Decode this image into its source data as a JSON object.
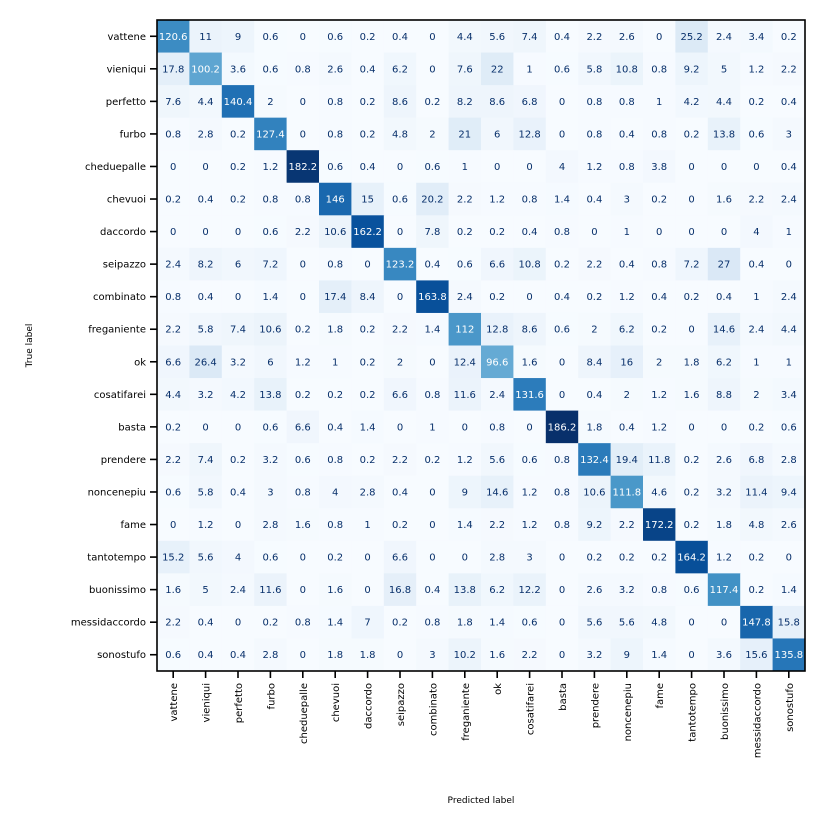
{
  "chart_data": {
    "type": "heatmap",
    "xlabel": "Predicted label",
    "ylabel": "True label",
    "colormap": "Blues",
    "vmin": 0,
    "vmax": 186.2,
    "x_categories": [
      "vattene",
      "vieniqui",
      "perfetto",
      "furbo",
      "cheduepalle",
      "chevuoi",
      "daccordo",
      "seipazzo",
      "combinato",
      "freganiente",
      "ok",
      "cosatifarei",
      "basta",
      "prendere",
      "noncenepiu",
      "fame",
      "tantotempo",
      "buonissimo",
      "messidaccordo",
      "sonostufo"
    ],
    "y_categories": [
      "vattene",
      "vieniqui",
      "perfetto",
      "furbo",
      "cheduepalle",
      "chevuoi",
      "daccordo",
      "seipazzo",
      "combinato",
      "freganiente",
      "ok",
      "cosatifarei",
      "basta",
      "prendere",
      "noncenepiu",
      "fame",
      "tantotempo",
      "buonissimo",
      "messidaccordo",
      "sonostufo"
    ],
    "values": [
      [
        120.6,
        11,
        9,
        0.6,
        0,
        0.6,
        0.2,
        0.4,
        0,
        4.4,
        5.6,
        7.4,
        0.4,
        2.2,
        2.6,
        0,
        25.2,
        2.4,
        3.4,
        0.2
      ],
      [
        17.8,
        100.2,
        3.6,
        0.6,
        0.8,
        2.6,
        0.4,
        6.2,
        0,
        7.6,
        22,
        1,
        0.6,
        5.8,
        10.8,
        0.8,
        9.2,
        5,
        1.2,
        2.2
      ],
      [
        7.6,
        4.4,
        140.4,
        2,
        0,
        0.8,
        0.2,
        8.6,
        0.2,
        8.2,
        8.6,
        6.8,
        0,
        0.8,
        0.8,
        1,
        4.2,
        4.4,
        0.2,
        0.4
      ],
      [
        0.8,
        2.8,
        0.2,
        127.4,
        0,
        0.8,
        0.2,
        4.8,
        2,
        21,
        6,
        12.8,
        0,
        0.8,
        0.4,
        0.8,
        0.2,
        13.8,
        0.6,
        3
      ],
      [
        0,
        0,
        0.2,
        1.2,
        182.2,
        0.6,
        0.4,
        0,
        0.6,
        1,
        0,
        0,
        4,
        1.2,
        0.8,
        3.8,
        0,
        0,
        0,
        0.4
      ],
      [
        0.2,
        0.4,
        0.2,
        0.8,
        0.8,
        146,
        15,
        0.6,
        20.2,
        2.2,
        1.2,
        0.8,
        1.4,
        0.4,
        3,
        0.2,
        0,
        1.6,
        2.2,
        2.4
      ],
      [
        0,
        0,
        0,
        0.6,
        2.2,
        10.6,
        162.2,
        0,
        7.8,
        0.2,
        0.2,
        0.4,
        0.8,
        0,
        1,
        0,
        0,
        0,
        4,
        1
      ],
      [
        2.4,
        8.2,
        6,
        7.2,
        0,
        0.8,
        0,
        123.2,
        0.4,
        0.6,
        6.6,
        10.8,
        0.2,
        2.2,
        0.4,
        0.8,
        7.2,
        27,
        0.4,
        0
      ],
      [
        0.8,
        0.4,
        0,
        1.4,
        0,
        17.4,
        8.4,
        0,
        163.8,
        2.4,
        0.2,
        0,
        0.4,
        0.2,
        1.2,
        0.4,
        0.2,
        0.4,
        1,
        2.4
      ],
      [
        2.2,
        5.8,
        7.4,
        10.6,
        0.2,
        1.8,
        0.2,
        2.2,
        1.4,
        112,
        12.8,
        8.6,
        0.6,
        2,
        6.2,
        0.2,
        0,
        14.6,
        2.4,
        4.4
      ],
      [
        6.6,
        26.4,
        3.2,
        6,
        1.2,
        1,
        0.2,
        2,
        0,
        12.4,
        96.6,
        1.6,
        0,
        8.4,
        16,
        2,
        1.8,
        6.2,
        1,
        1
      ],
      [
        4.4,
        3.2,
        4.2,
        13.8,
        0.2,
        0.2,
        0.2,
        6.6,
        0.8,
        11.6,
        2.4,
        131.6,
        0,
        0.4,
        2,
        1.2,
        1.6,
        8.8,
        2,
        3.4
      ],
      [
        0.2,
        0,
        0,
        0.6,
        6.6,
        0.4,
        1.4,
        0,
        1,
        0,
        0.8,
        0,
        186.2,
        1.8,
        0.4,
        1.2,
        0,
        0,
        0.2,
        0.6
      ],
      [
        2.2,
        7.4,
        0.2,
        3.2,
        0.6,
        0.8,
        0.2,
        2.2,
        0.2,
        1.2,
        5.6,
        0.6,
        0.8,
        132.4,
        19.4,
        11.8,
        0.2,
        2.6,
        6.8,
        2.8
      ],
      [
        0.6,
        5.8,
        0.4,
        3,
        0.8,
        4,
        2.8,
        0.4,
        0,
        9,
        14.6,
        1.2,
        0.8,
        10.6,
        111.8,
        4.6,
        0.2,
        3.2,
        11.4,
        9.4
      ],
      [
        0,
        1.2,
        0,
        2.8,
        1.6,
        0.8,
        1,
        0.2,
        0,
        1.4,
        2.2,
        1.2,
        0.8,
        9.2,
        2.2,
        172.2,
        0.2,
        1.8,
        4.8,
        2.6
      ],
      [
        15.2,
        5.6,
        4,
        0.6,
        0,
        0.2,
        0,
        6.6,
        0,
        0,
        2.8,
        3,
        0,
        0.2,
        0.2,
        0.2,
        164.2,
        1.2,
        0.2,
        0
      ],
      [
        1.6,
        5,
        2.4,
        11.6,
        0,
        1.6,
        0,
        16.8,
        0.4,
        13.8,
        6.2,
        12.2,
        0,
        2.6,
        3.2,
        0.8,
        0.6,
        117.4,
        0.2,
        1.4
      ],
      [
        2.2,
        0.4,
        0,
        0.2,
        0.8,
        1.4,
        7,
        0.2,
        0.8,
        1.8,
        1.4,
        0.6,
        0,
        5.6,
        5.6,
        4.8,
        0,
        0,
        147.8,
        15.8
      ],
      [
        0.6,
        0.4,
        0.4,
        2.8,
        0,
        1.8,
        1.8,
        0,
        3,
        10.2,
        1.6,
        2.2,
        0,
        3.2,
        9,
        1.4,
        0,
        3.6,
        15.6,
        135.8
      ]
    ],
    "grid": false,
    "legend": "none"
  }
}
